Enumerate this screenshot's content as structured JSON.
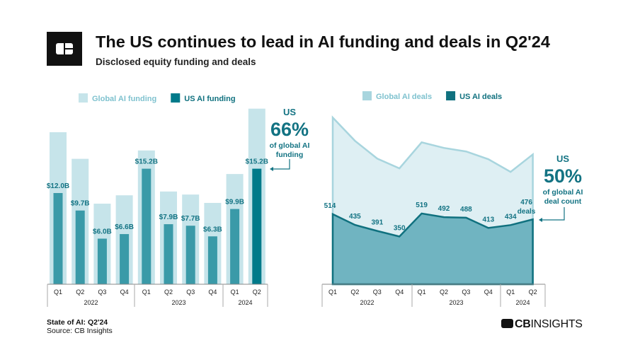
{
  "header": {
    "title": "The US continues to lead in AI funding and deals in Q2'24",
    "subtitle": "Disclosed equity funding and deals"
  },
  "footer": {
    "report": "State of AI: Q2'24",
    "source": "Source: CB Insights",
    "brand": "CBINSIGHTS",
    "brand_bold": "CB",
    "brand_rest": "INSIGHTS"
  },
  "colors": {
    "global_bar": "#c6e4ea",
    "us_bar": "#3a9aa8",
    "us_bar_highlight": "#007a8a",
    "global_area": "#deeff3",
    "global_line": "#a8d5de",
    "us_area": "#70b4c1",
    "us_line": "#10717f",
    "accent_text": "#137383"
  },
  "chart_data": [
    {
      "type": "bar",
      "categories": [
        "Q1",
        "Q2",
        "Q3",
        "Q4",
        "Q1",
        "Q2",
        "Q3",
        "Q4",
        "Q1",
        "Q2"
      ],
      "years": [
        "2022",
        "2023",
        "2024"
      ],
      "series": [
        {
          "name": "Global AI funding",
          "values": [
            20.0,
            16.5,
            10.6,
            11.7,
            17.6,
            12.2,
            11.8,
            10.7,
            14.5,
            23.1
          ]
        },
        {
          "name": "US AI funding",
          "values": [
            12.0,
            9.7,
            6.0,
            6.6,
            15.2,
            7.9,
            7.7,
            6.3,
            9.9,
            15.2
          ],
          "labels": [
            "$12.0B",
            "$9.7B",
            "$6.0B",
            "$6.6B",
            "$15.2B",
            "$7.9B",
            "$7.7B",
            "$6.3B",
            "$9.9B",
            "$15.2B"
          ]
        }
      ],
      "unit": "$B",
      "ylim": [
        0,
        24
      ],
      "grid": false,
      "legend": "top",
      "annotation": {
        "line1": "US",
        "big": "66%",
        "line2": "of global AI",
        "line3": "funding"
      }
    },
    {
      "type": "area",
      "categories": [
        "Q1",
        "Q2",
        "Q3",
        "Q4",
        "Q1",
        "Q2",
        "Q3",
        "Q4",
        "Q1",
        "Q2"
      ],
      "years": [
        "2022",
        "2023",
        "2024"
      ],
      "series": [
        {
          "name": "Global AI deals",
          "values": [
            1223,
            1052,
            922,
            850,
            1041,
            1000,
            974,
            917,
            824,
            952
          ]
        },
        {
          "name": "US AI deals",
          "values": [
            514,
            435,
            391,
            350,
            519,
            492,
            488,
            413,
            434,
            476
          ],
          "labels": [
            "514",
            "435",
            "391",
            "350",
            "519",
            "492",
            "488",
            "413",
            "434",
            "476"
          ],
          "last_suffix": "deals"
        }
      ],
      "ylim": [
        0,
        1250
      ],
      "grid": false,
      "legend": "top",
      "annotation": {
        "line1": "US",
        "big": "50%",
        "line2": "of global AI",
        "line3": "deal count"
      }
    }
  ]
}
